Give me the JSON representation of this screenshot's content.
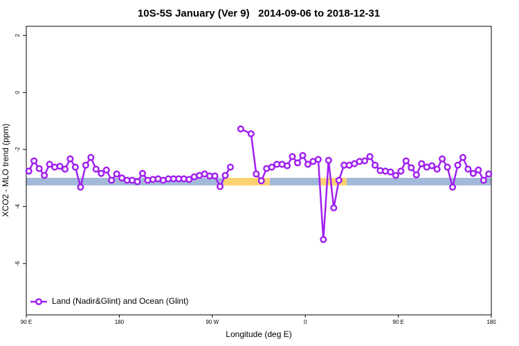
{
  "chart_data": {
    "type": "line",
    "title": "10S-5S January (Ver 9)   2014-09-06 to 2018-12-31",
    "x_label": "Longitude (deg E)",
    "y_label": "XCO2 - MLO trend (ppm)",
    "xlim": [
      90,
      540
    ],
    "ylim": [
      -7.8,
      2.32
    ],
    "xticks": [
      {
        "value": 90,
        "label": "90 E"
      },
      180,
      {
        "value": 270,
        "label": "90 W"
      },
      {
        "value": 360,
        "label": "0"
      },
      {
        "value": 450,
        "label": "90 E"
      },
      {
        "value": 540,
        "label": "180"
      }
    ],
    "yticks": [
      2,
      0,
      -2,
      -4,
      -6
    ],
    "legend": "bottom-left",
    "x": [
      92.5,
      97.5,
      102.5,
      107.5,
      112.5,
      117.5,
      122.5,
      127.5,
      132.5,
      137.5,
      142.5,
      147.5,
      152.5,
      157.5,
      162.5,
      167.5,
      172.5,
      177.5,
      182.5,
      187.5,
      192.5,
      197.5,
      202.5,
      207.5,
      212.5,
      217.5,
      222.5,
      227.5,
      232.5,
      237.5,
      242.5,
      247.5,
      252.5,
      257.5,
      262.5,
      267.5,
      272.5,
      277.5,
      282.5,
      287.5,
      292.5,
      297.5,
      307.5,
      312.5,
      317.5,
      322.5,
      327.5,
      332.5,
      337.5,
      342.5,
      347.5,
      352.5,
      357.5,
      362.5,
      367.5,
      372.5,
      377.5,
      382.5,
      387.5,
      392.5,
      397.5,
      402.5,
      407.5,
      412.5,
      417.5,
      422.5,
      427.5,
      432.5,
      437.5,
      442.5,
      447.5,
      452.5,
      457.5,
      462.5,
      467.5,
      472.5,
      477.5,
      482.5,
      487.5,
      492.5,
      497.5,
      502.5,
      507.5,
      512.5,
      517.5,
      522.5,
      527.5,
      532.5,
      537.5
    ],
    "series": [
      {
        "name": "Land (Nadir&Glint) and Ocean (Glint)",
        "color": "#a020f0",
        "values": [
          -2.76,
          -2.4,
          -2.67,
          -2.91,
          -2.52,
          -2.62,
          -2.59,
          -2.69,
          -2.33,
          -2.62,
          -3.32,
          -2.55,
          -2.28,
          -2.69,
          -2.84,
          -2.72,
          -3.08,
          -2.86,
          -3.0,
          -3.08,
          -3.08,
          -3.13,
          -2.84,
          -3.08,
          -3.05,
          -3.03,
          -3.08,
          -3.03,
          -3.03,
          -3.03,
          -3.03,
          -3.05,
          -2.96,
          -2.91,
          -2.86,
          -2.93,
          -2.93,
          -3.3,
          -2.91,
          -2.62,
          null,
          -1.28,
          -1.45,
          -2.86,
          -3.1,
          -2.67,
          -2.62,
          -2.52,
          -2.52,
          -2.57,
          -2.25,
          -2.47,
          -2.21,
          -2.52,
          -2.42,
          -2.35,
          -5.16,
          -2.38,
          -4.05,
          -3.08,
          -2.55,
          -2.55,
          -2.5,
          -2.42,
          -2.4,
          -2.25,
          -2.55,
          -2.74,
          -2.76,
          -2.79,
          -2.91,
          -2.76,
          -2.4,
          -2.64,
          -2.89,
          -2.5,
          -2.62,
          -2.57,
          -2.69,
          -2.33,
          -2.62,
          -3.32,
          -2.55,
          -2.28,
          -2.69,
          -2.84,
          -2.72,
          -3.08,
          -2.86
        ]
      }
    ]
  }
}
